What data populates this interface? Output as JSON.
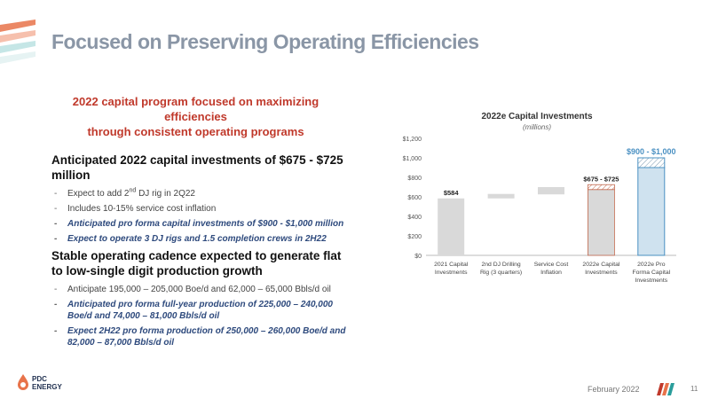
{
  "title": "Focused on Preserving Operating Efficiencies",
  "subtitle_line1": "2022 capital program focused on maximizing efficiencies",
  "subtitle_line2": "through consistent operating programs",
  "section1": {
    "heading": "Anticipated 2022 capital investments of $675 - $725 million",
    "b1_pre": "Expect to add 2",
    "b1_sup": "nd",
    "b1_post": " DJ rig in 2Q22",
    "b2": "Includes 10-15% service cost inflation",
    "b3": "Anticipated pro forma capital investments of $900 - $1,000 million",
    "b4": "Expect to operate 3 DJ rigs and 1.5 completion crews in 2H22"
  },
  "section2": {
    "heading": "Stable operating cadence expected to generate flat to low-single digit production growth",
    "b1": "Anticipate 195,000 – 205,000 Boe/d and 62,000 – 65,000 Bbls/d oil",
    "b2": "Anticipated pro forma full-year production of 225,000 – 240,000 Boe/d and 74,000 – 81,000 Bbls/d oil",
    "b3": "Expect 2H22 pro forma production of 250,000 – 260,000 Boe/d and 82,000 – 87,000 Bbls/d oil"
  },
  "footer": {
    "date": "February 2022",
    "page": "11",
    "logo_text_1": "PDC",
    "logo_text_2": "ENERGY"
  },
  "colors": {
    "accent_red": "#c0392b",
    "navy": "#2e4a7d",
    "gray_bar": "#d9d9d9",
    "blue_bar": "#cfe2ef",
    "blue_border": "#4a90c2",
    "orange_border": "#c1694f"
  },
  "chart_data": {
    "type": "bar",
    "title": "2022e Capital Investments",
    "subtitle": "(millions)",
    "ylim": [
      0,
      1200
    ],
    "yticks": [
      0,
      200,
      400,
      600,
      800,
      1000,
      1200
    ],
    "ytick_labels": [
      "$0",
      "$200",
      "$400",
      "$600",
      "$800",
      "$1,000",
      "$1,200"
    ],
    "categories": [
      [
        "2021 Capital",
        "Investments"
      ],
      [
        "2nd DJ Drilling",
        "Rig (3 quarters)"
      ],
      [
        "Service Cost",
        "Inflation"
      ],
      [
        "2022e Capital",
        "Investments"
      ],
      [
        "2022e Pro",
        "Forma Capital",
        "Investments"
      ]
    ],
    "bars": [
      {
        "kind": "total",
        "low": 0,
        "high": 584,
        "label": "$584"
      },
      {
        "kind": "step",
        "low": 584,
        "high": 630
      },
      {
        "kind": "step",
        "low": 625,
        "high": 700
      },
      {
        "kind": "range_total",
        "low": 0,
        "high": 675,
        "range_high": 725,
        "label": "$675 - $725"
      },
      {
        "kind": "range_total_blue",
        "low": 0,
        "high": 900,
        "range_high": 1000,
        "label": "$900 - $1,000"
      }
    ],
    "grid": false,
    "legend": "none"
  }
}
